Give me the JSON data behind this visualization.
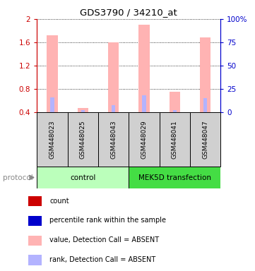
{
  "title": "GDS3790 / 34210_at",
  "samples": [
    "GSM448023",
    "GSM448025",
    "GSM448043",
    "GSM448029",
    "GSM448041",
    "GSM448047"
  ],
  "value_bars": [
    1.72,
    0.48,
    1.6,
    1.9,
    0.76,
    1.68
  ],
  "rank_bars": [
    0.66,
    0.44,
    0.52,
    0.7,
    0.44,
    0.64
  ],
  "bar_bottom": 0.4,
  "value_color": "#ffb3b3",
  "rank_color": "#b3b3ff",
  "count_color": "#cc0000",
  "percentile_color": "#0000cc",
  "ylim": [
    0.4,
    2.0
  ],
  "y2lim": [
    0,
    100
  ],
  "yticks": [
    0.4,
    0.8,
    1.2,
    1.6,
    2.0
  ],
  "y2ticks": [
    0,
    25,
    50,
    75,
    100
  ],
  "ytick_labels": [
    "0.4",
    "0.8",
    "1.2",
    "1.6",
    "2"
  ],
  "y2tick_labels": [
    "0",
    "25",
    "50",
    "75",
    "100%"
  ],
  "bar_width": 0.35,
  "rank_bar_width": 0.12,
  "axis_left_color": "#cc0000",
  "axis_right_color": "#0000cc",
  "control_color": "#bbffbb",
  "mek_color": "#44dd44",
  "sample_box_color": "#d0d0d0",
  "legend_labels": [
    "count",
    "percentile rank within the sample",
    "value, Detection Call = ABSENT",
    "rank, Detection Call = ABSENT"
  ],
  "legend_colors": [
    "#cc0000",
    "#0000cc",
    "#ffb3b3",
    "#b3b3ff"
  ]
}
